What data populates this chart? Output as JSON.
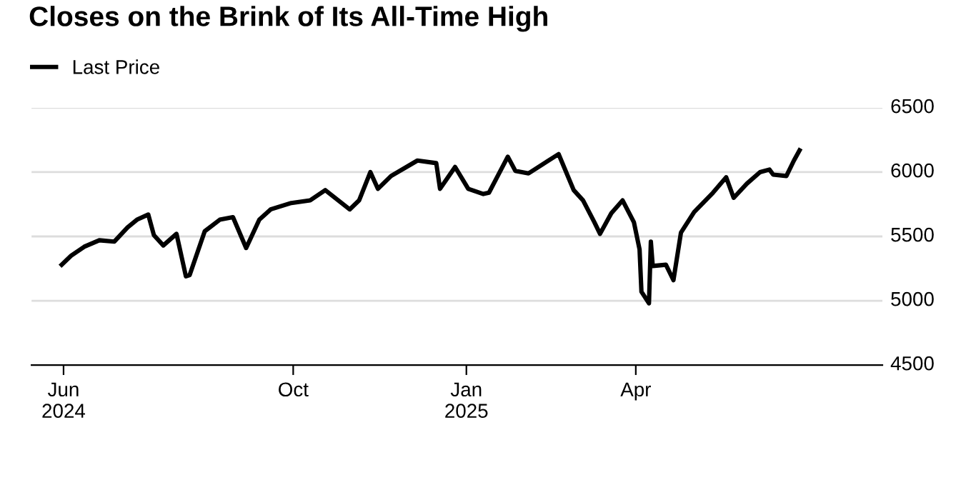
{
  "chart_data": {
    "type": "line",
    "title": "Closes on the Brink of Its All-Time High",
    "x": [
      "2024-05-31",
      "2024-06-05",
      "2024-06-12",
      "2024-06-20",
      "2024-06-28",
      "2024-07-05",
      "2024-07-10",
      "2024-07-16",
      "2024-07-19",
      "2024-07-24",
      "2024-07-31",
      "2024-08-05",
      "2024-08-07",
      "2024-08-15",
      "2024-08-23",
      "2024-08-30",
      "2024-09-06",
      "2024-09-13",
      "2024-09-19",
      "2024-09-30",
      "2024-10-10",
      "2024-10-18",
      "2024-10-31",
      "2024-11-05",
      "2024-11-11",
      "2024-11-15",
      "2024-11-22",
      "2024-12-06",
      "2024-12-16",
      "2024-12-18",
      "2024-12-26",
      "2025-01-02",
      "2025-01-10",
      "2025-01-13",
      "2025-01-23",
      "2025-01-27",
      "2025-02-03",
      "2025-02-19",
      "2025-02-27",
      "2025-03-04",
      "2025-03-10",
      "2025-03-13",
      "2025-03-19",
      "2025-03-25",
      "2025-03-31",
      "2025-04-03",
      "2025-04-04",
      "2025-04-08",
      "2025-04-09",
      "2025-04-10",
      "2025-04-17",
      "2025-04-21",
      "2025-04-25",
      "2025-05-02",
      "2025-05-12",
      "2025-05-19",
      "2025-05-23",
      "2025-05-30",
      "2025-06-06",
      "2025-06-11",
      "2025-06-13",
      "2025-06-20",
      "2025-06-24",
      "2025-06-27"
    ],
    "series": [
      {
        "name": "Last Price",
        "color": "#000000",
        "values": [
          5280,
          5350,
          5420,
          5470,
          5460,
          5570,
          5630,
          5670,
          5510,
          5430,
          5520,
          5190,
          5200,
          5540,
          5630,
          5650,
          5410,
          5630,
          5710,
          5760,
          5780,
          5860,
          5710,
          5780,
          6000,
          5870,
          5970,
          6090,
          6070,
          5870,
          6040,
          5870,
          5830,
          5840,
          6120,
          6010,
          5990,
          6140,
          5860,
          5780,
          5610,
          5520,
          5680,
          5780,
          5610,
          5400,
          5070,
          4980,
          5460,
          5270,
          5280,
          5160,
          5530,
          5690,
          5840,
          5960,
          5800,
          5910,
          6000,
          6020,
          5980,
          5970,
          6090,
          6170
        ]
      }
    ],
    "xlim": [
      "2024-05-15",
      "2025-08-10"
    ],
    "xticks": [
      {
        "value": "2024-06-01",
        "label": "Jun\n2024"
      },
      {
        "value": "2024-10-01",
        "label": "Oct"
      },
      {
        "value": "2025-01-01",
        "label": "Jan\n2025"
      },
      {
        "value": "2025-04-01",
        "label": "Apr"
      }
    ],
    "ylim": [
      4500,
      6500
    ],
    "yticks": [
      4500,
      5000,
      5500,
      6000,
      6500
    ],
    "grid": "y",
    "legend": "top left",
    "line_style": "solid",
    "marker": "none"
  }
}
